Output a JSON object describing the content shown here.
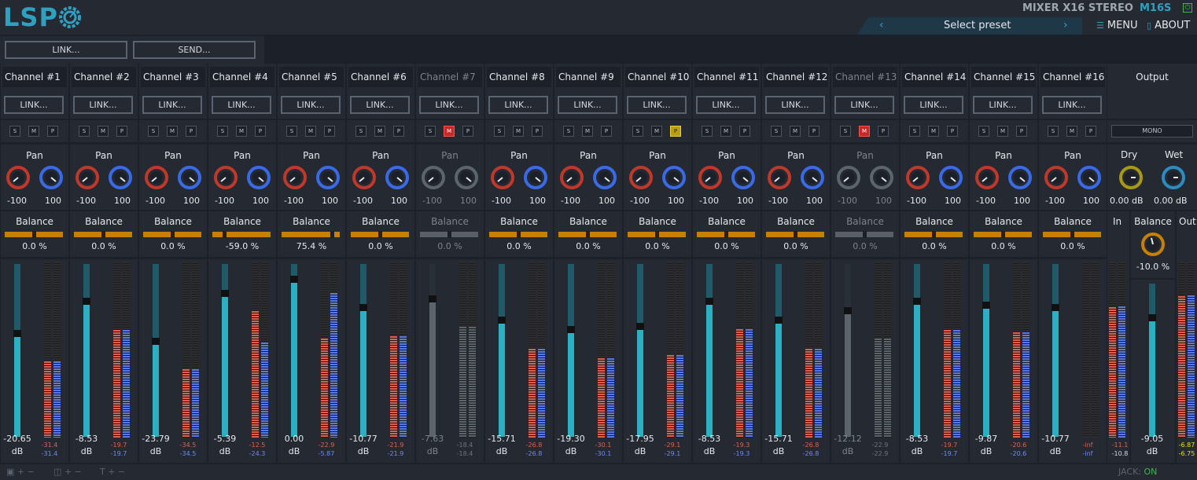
{
  "header": {
    "logo_text": "LSP",
    "plugin_name": "MIXER X16 STEREO",
    "plugin_version": "M16S",
    "preset_label": "Select preset",
    "menu_label": "MENU",
    "about_label": "ABOUT"
  },
  "toolbar": {
    "link_label": "LINK...",
    "send_label": "SEND..."
  },
  "common": {
    "link": "LINK...",
    "solo": "S",
    "mute": "M",
    "phase": "P",
    "pan": "Pan",
    "balance": "Balance",
    "pan_left": "-100",
    "pan_right": "100",
    "db": "dB"
  },
  "channels": [
    {
      "name": "Channel #1",
      "balance": "0.0 %",
      "gain": "-20.65",
      "meter_l": "-31.4",
      "meter_r": "-31.4",
      "mute": false,
      "phase": false,
      "dim": false
    },
    {
      "name": "Channel #2",
      "balance": "0.0 %",
      "gain": "-8.53",
      "meter_l": "-19.7",
      "meter_r": "-19.7",
      "mute": false,
      "phase": false,
      "dim": false
    },
    {
      "name": "Channel #3",
      "balance": "0.0 %",
      "gain": "-23.79",
      "meter_l": "-34.5",
      "meter_r": "-34.5",
      "mute": false,
      "phase": false,
      "dim": false
    },
    {
      "name": "Channel #4",
      "balance": "-59.0 %",
      "gain": "-5.39",
      "meter_l": "-12.5",
      "meter_r": "-24.3",
      "mute": false,
      "phase": false,
      "dim": false
    },
    {
      "name": "Channel #5",
      "balance": "75.4 %",
      "gain": "0.00",
      "meter_l": "-22.9",
      "meter_r": "-5.87",
      "mute": false,
      "phase": false,
      "dim": false
    },
    {
      "name": "Channel #6",
      "balance": "0.0 %",
      "gain": "-10.77",
      "meter_l": "-21.9",
      "meter_r": "-21.9",
      "mute": false,
      "phase": false,
      "dim": false
    },
    {
      "name": "Channel #7",
      "balance": "0.0 %",
      "gain": "-7.63",
      "meter_l": "-18.4",
      "meter_r": "-18.4",
      "mute": true,
      "phase": false,
      "dim": true
    },
    {
      "name": "Channel #8",
      "balance": "0.0 %",
      "gain": "-15.71",
      "meter_l": "-26.8",
      "meter_r": "-26.8",
      "mute": false,
      "phase": false,
      "dim": false
    },
    {
      "name": "Channel #9",
      "balance": "0.0 %",
      "gain": "-19.30",
      "meter_l": "-30.1",
      "meter_r": "-30.1",
      "mute": false,
      "phase": false,
      "dim": false
    },
    {
      "name": "Channel #10",
      "balance": "0.0 %",
      "gain": "-17.95",
      "meter_l": "-29.1",
      "meter_r": "-29.1",
      "mute": false,
      "phase": true,
      "dim": false
    },
    {
      "name": "Channel #11",
      "balance": "0.0 %",
      "gain": "-8.53",
      "meter_l": "-19.3",
      "meter_r": "-19.3",
      "mute": false,
      "phase": false,
      "dim": false
    },
    {
      "name": "Channel #12",
      "balance": "0.0 %",
      "gain": "-15.71",
      "meter_l": "-26.8",
      "meter_r": "-26.8",
      "mute": false,
      "phase": false,
      "dim": false
    },
    {
      "name": "Channel #13",
      "balance": "0.0 %",
      "gain": "-12.12",
      "meter_l": "-22.9",
      "meter_r": "-22.9",
      "mute": true,
      "phase": false,
      "dim": true
    },
    {
      "name": "Channel #14",
      "balance": "0.0 %",
      "gain": "-8.53",
      "meter_l": "-19.7",
      "meter_r": "-19.7",
      "mute": false,
      "phase": false,
      "dim": false
    },
    {
      "name": "Channel #15",
      "balance": "0.0 %",
      "gain": "-9.87",
      "meter_l": "-20.6",
      "meter_r": "-20.6",
      "mute": false,
      "phase": false,
      "dim": false
    },
    {
      "name": "Channel #16",
      "balance": "0.0 %",
      "gain": "-10.77",
      "meter_l": "-inf",
      "meter_r": "-inf",
      "mute": false,
      "phase": false,
      "dim": false
    }
  ],
  "output": {
    "title": "Output",
    "mono_label": "MONO",
    "dry_label": "Dry",
    "wet_label": "Wet",
    "dry_value": "0.00 dB",
    "wet_value": "0.00 dB",
    "in_label": "In",
    "out_label": "Out",
    "balance_label": "Balance",
    "balance_value": "-10.0 %",
    "in_l": "-11.1",
    "in_r": "-10.8",
    "gain": "-9.05",
    "db": "dB",
    "out_l": "-6.87",
    "out_r": "-6.75"
  },
  "status": {
    "jack_label": "JACK:",
    "jack_state": "ON"
  },
  "colors": {
    "accent": "#2fa0c0",
    "balance_bar": "#c88000",
    "mute_on": "#c42a2a",
    "phase_on": "#b8a010",
    "meter_left": "#d04a3a",
    "meter_right": "#3a5ad8",
    "status_on": "#3ab84a"
  }
}
